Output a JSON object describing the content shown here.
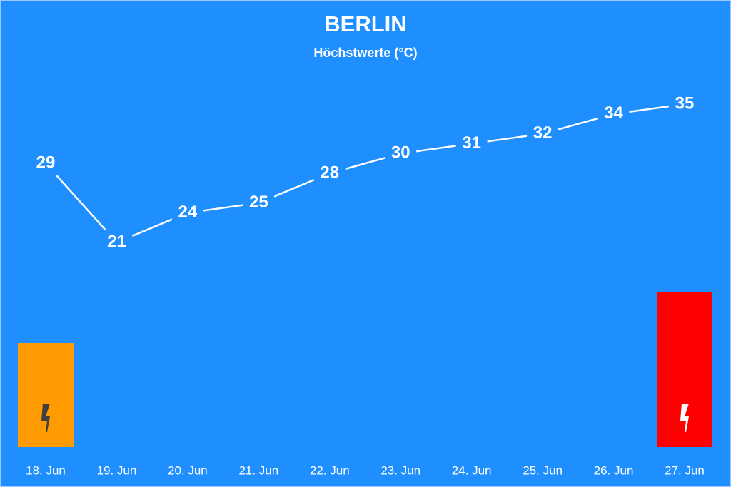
{
  "chart_data": {
    "type": "line",
    "title": "BERLIN",
    "subtitle": "Höchstwerte (°C)",
    "categories": [
      "18. Jun",
      "19. Jun",
      "20. Jun",
      "21. Jun",
      "22. Jun",
      "23. Jun",
      "24. Jun",
      "25. Jun",
      "26. Jun",
      "27. Jun"
    ],
    "values": [
      29,
      21,
      24,
      25,
      28,
      30,
      31,
      32,
      34,
      35
    ],
    "color": "#ffffff"
  }
}
